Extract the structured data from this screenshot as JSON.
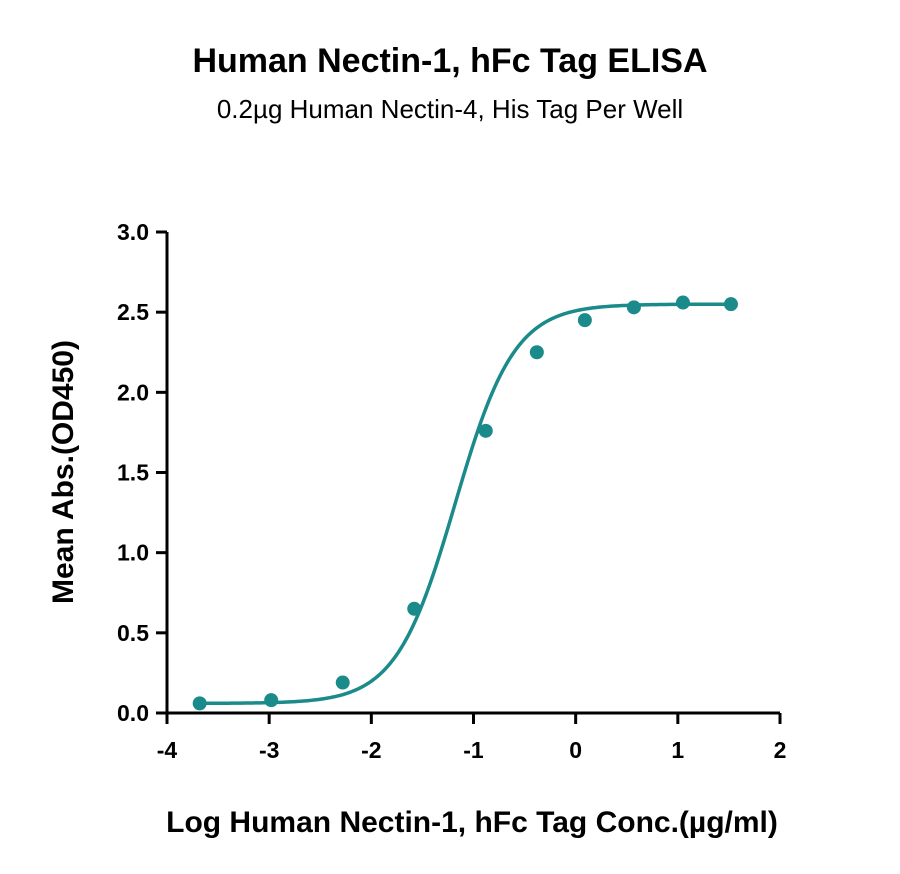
{
  "chart_data": {
    "type": "scatter",
    "title": "Human Nectin-1, hFc Tag ELISA",
    "subtitle": "0.2µg Human Nectin-4, His Tag Per Well",
    "xlabel": "Log Human Nectin-1, hFc Tag Conc.(µg/ml)",
    "ylabel": "Mean Abs.(OD450)",
    "xlim": [
      -4,
      2
    ],
    "ylim": [
      0,
      3.0
    ],
    "x_ticks": [
      "-4",
      "-3",
      "-2",
      "-1",
      "0",
      "1",
      "2"
    ],
    "y_ticks": [
      "0.0",
      "0.5",
      "1.0",
      "1.5",
      "2.0",
      "2.5",
      "3.0"
    ],
    "color": "#1a8a8a",
    "series": [
      {
        "x": [
          -3.68,
          -2.98,
          -2.28,
          -1.58,
          -0.88,
          -0.38,
          0.09,
          0.57,
          1.05,
          1.52
        ],
        "y": [
          0.06,
          0.08,
          0.19,
          0.65,
          1.76,
          2.25,
          2.45,
          2.53,
          2.56,
          2.55
        ]
      }
    ],
    "fit_curve": {
      "type": "4PL",
      "bottom": 0.06,
      "top": 2.55,
      "log_ec50": -1.18,
      "hill_slope": 1.5
    }
  }
}
